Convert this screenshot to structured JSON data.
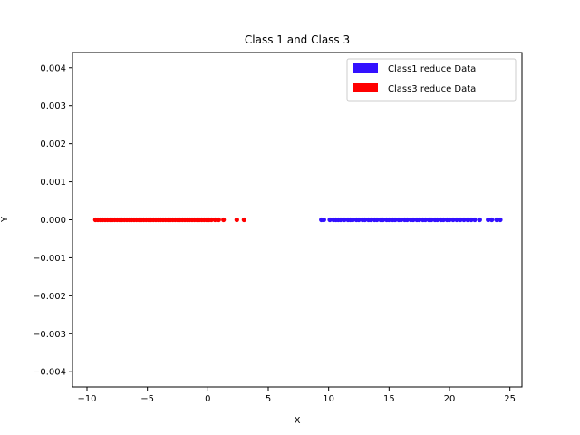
{
  "chart_data": {
    "type": "scatter",
    "title": "Class 1 and Class 3",
    "xlabel": "X",
    "ylabel": "Y",
    "xlim": [
      -11.2,
      26.0
    ],
    "ylim": [
      -0.0044,
      0.0044
    ],
    "xticks": [
      -10,
      -5,
      0,
      5,
      10,
      15,
      20,
      25
    ],
    "xtick_labels": [
      "−10",
      "−5",
      "0",
      "5",
      "10",
      "15",
      "20",
      "25"
    ],
    "yticks": [
      0.004,
      0.003,
      0.002,
      0.001,
      0.0,
      -0.001,
      -0.002,
      -0.003,
      -0.004
    ],
    "ytick_labels": [
      "0.004",
      "0.003",
      "0.002",
      "0.001",
      "0.000",
      "−0.001",
      "−0.002",
      "−0.003",
      "−0.004"
    ],
    "grid": false,
    "legend_position": "top-right",
    "series": [
      {
        "name": "Class1 reduce Data",
        "color": "#3311ff",
        "x": [
          9.4,
          9.6,
          10.1,
          10.4,
          10.6,
          10.8,
          11.0,
          11.3,
          11.6,
          11.8,
          12.0,
          12.3,
          12.5,
          12.8,
          13.0,
          13.3,
          13.5,
          13.8,
          14.0,
          14.3,
          14.5,
          14.8,
          15.0,
          15.3,
          15.5,
          15.8,
          16.0,
          16.3,
          16.5,
          16.8,
          17.0,
          17.3,
          17.5,
          17.8,
          18.0,
          18.3,
          18.5,
          18.8,
          19.0,
          19.3,
          19.5,
          19.8,
          20.0,
          20.3,
          20.6,
          20.9,
          21.2,
          21.5,
          21.8,
          22.1,
          22.5,
          23.2,
          23.5,
          23.9,
          24.2
        ],
        "y": [
          0,
          0,
          0,
          0,
          0,
          0,
          0,
          0,
          0,
          0,
          0,
          0,
          0,
          0,
          0,
          0,
          0,
          0,
          0,
          0,
          0,
          0,
          0,
          0,
          0,
          0,
          0,
          0,
          0,
          0,
          0,
          0,
          0,
          0,
          0,
          0,
          0,
          0,
          0,
          0,
          0,
          0,
          0,
          0,
          0,
          0,
          0,
          0,
          0,
          0,
          0,
          0,
          0,
          0,
          0
        ]
      },
      {
        "name": "Class3 reduce Data",
        "color": "#ff0000",
        "x": [
          -9.3,
          -9.1,
          -8.9,
          -8.7,
          -8.5,
          -8.3,
          -8.1,
          -7.9,
          -7.7,
          -7.5,
          -7.3,
          -7.1,
          -6.9,
          -6.7,
          -6.5,
          -6.3,
          -6.1,
          -5.9,
          -5.7,
          -5.5,
          -5.3,
          -5.1,
          -4.9,
          -4.7,
          -4.5,
          -4.3,
          -4.1,
          -3.9,
          -3.7,
          -3.5,
          -3.3,
          -3.1,
          -2.9,
          -2.7,
          -2.5,
          -2.3,
          -2.1,
          -1.9,
          -1.7,
          -1.5,
          -1.3,
          -1.1,
          -0.9,
          -0.7,
          -0.5,
          -0.3,
          -0.1,
          0.1,
          0.3,
          0.6,
          0.9,
          1.3,
          2.4,
          3.0
        ],
        "y": [
          0,
          0,
          0,
          0,
          0,
          0,
          0,
          0,
          0,
          0,
          0,
          0,
          0,
          0,
          0,
          0,
          0,
          0,
          0,
          0,
          0,
          0,
          0,
          0,
          0,
          0,
          0,
          0,
          0,
          0,
          0,
          0,
          0,
          0,
          0,
          0,
          0,
          0,
          0,
          0,
          0,
          0,
          0,
          0,
          0,
          0,
          0,
          0,
          0,
          0,
          0,
          0,
          0,
          0
        ]
      }
    ]
  }
}
